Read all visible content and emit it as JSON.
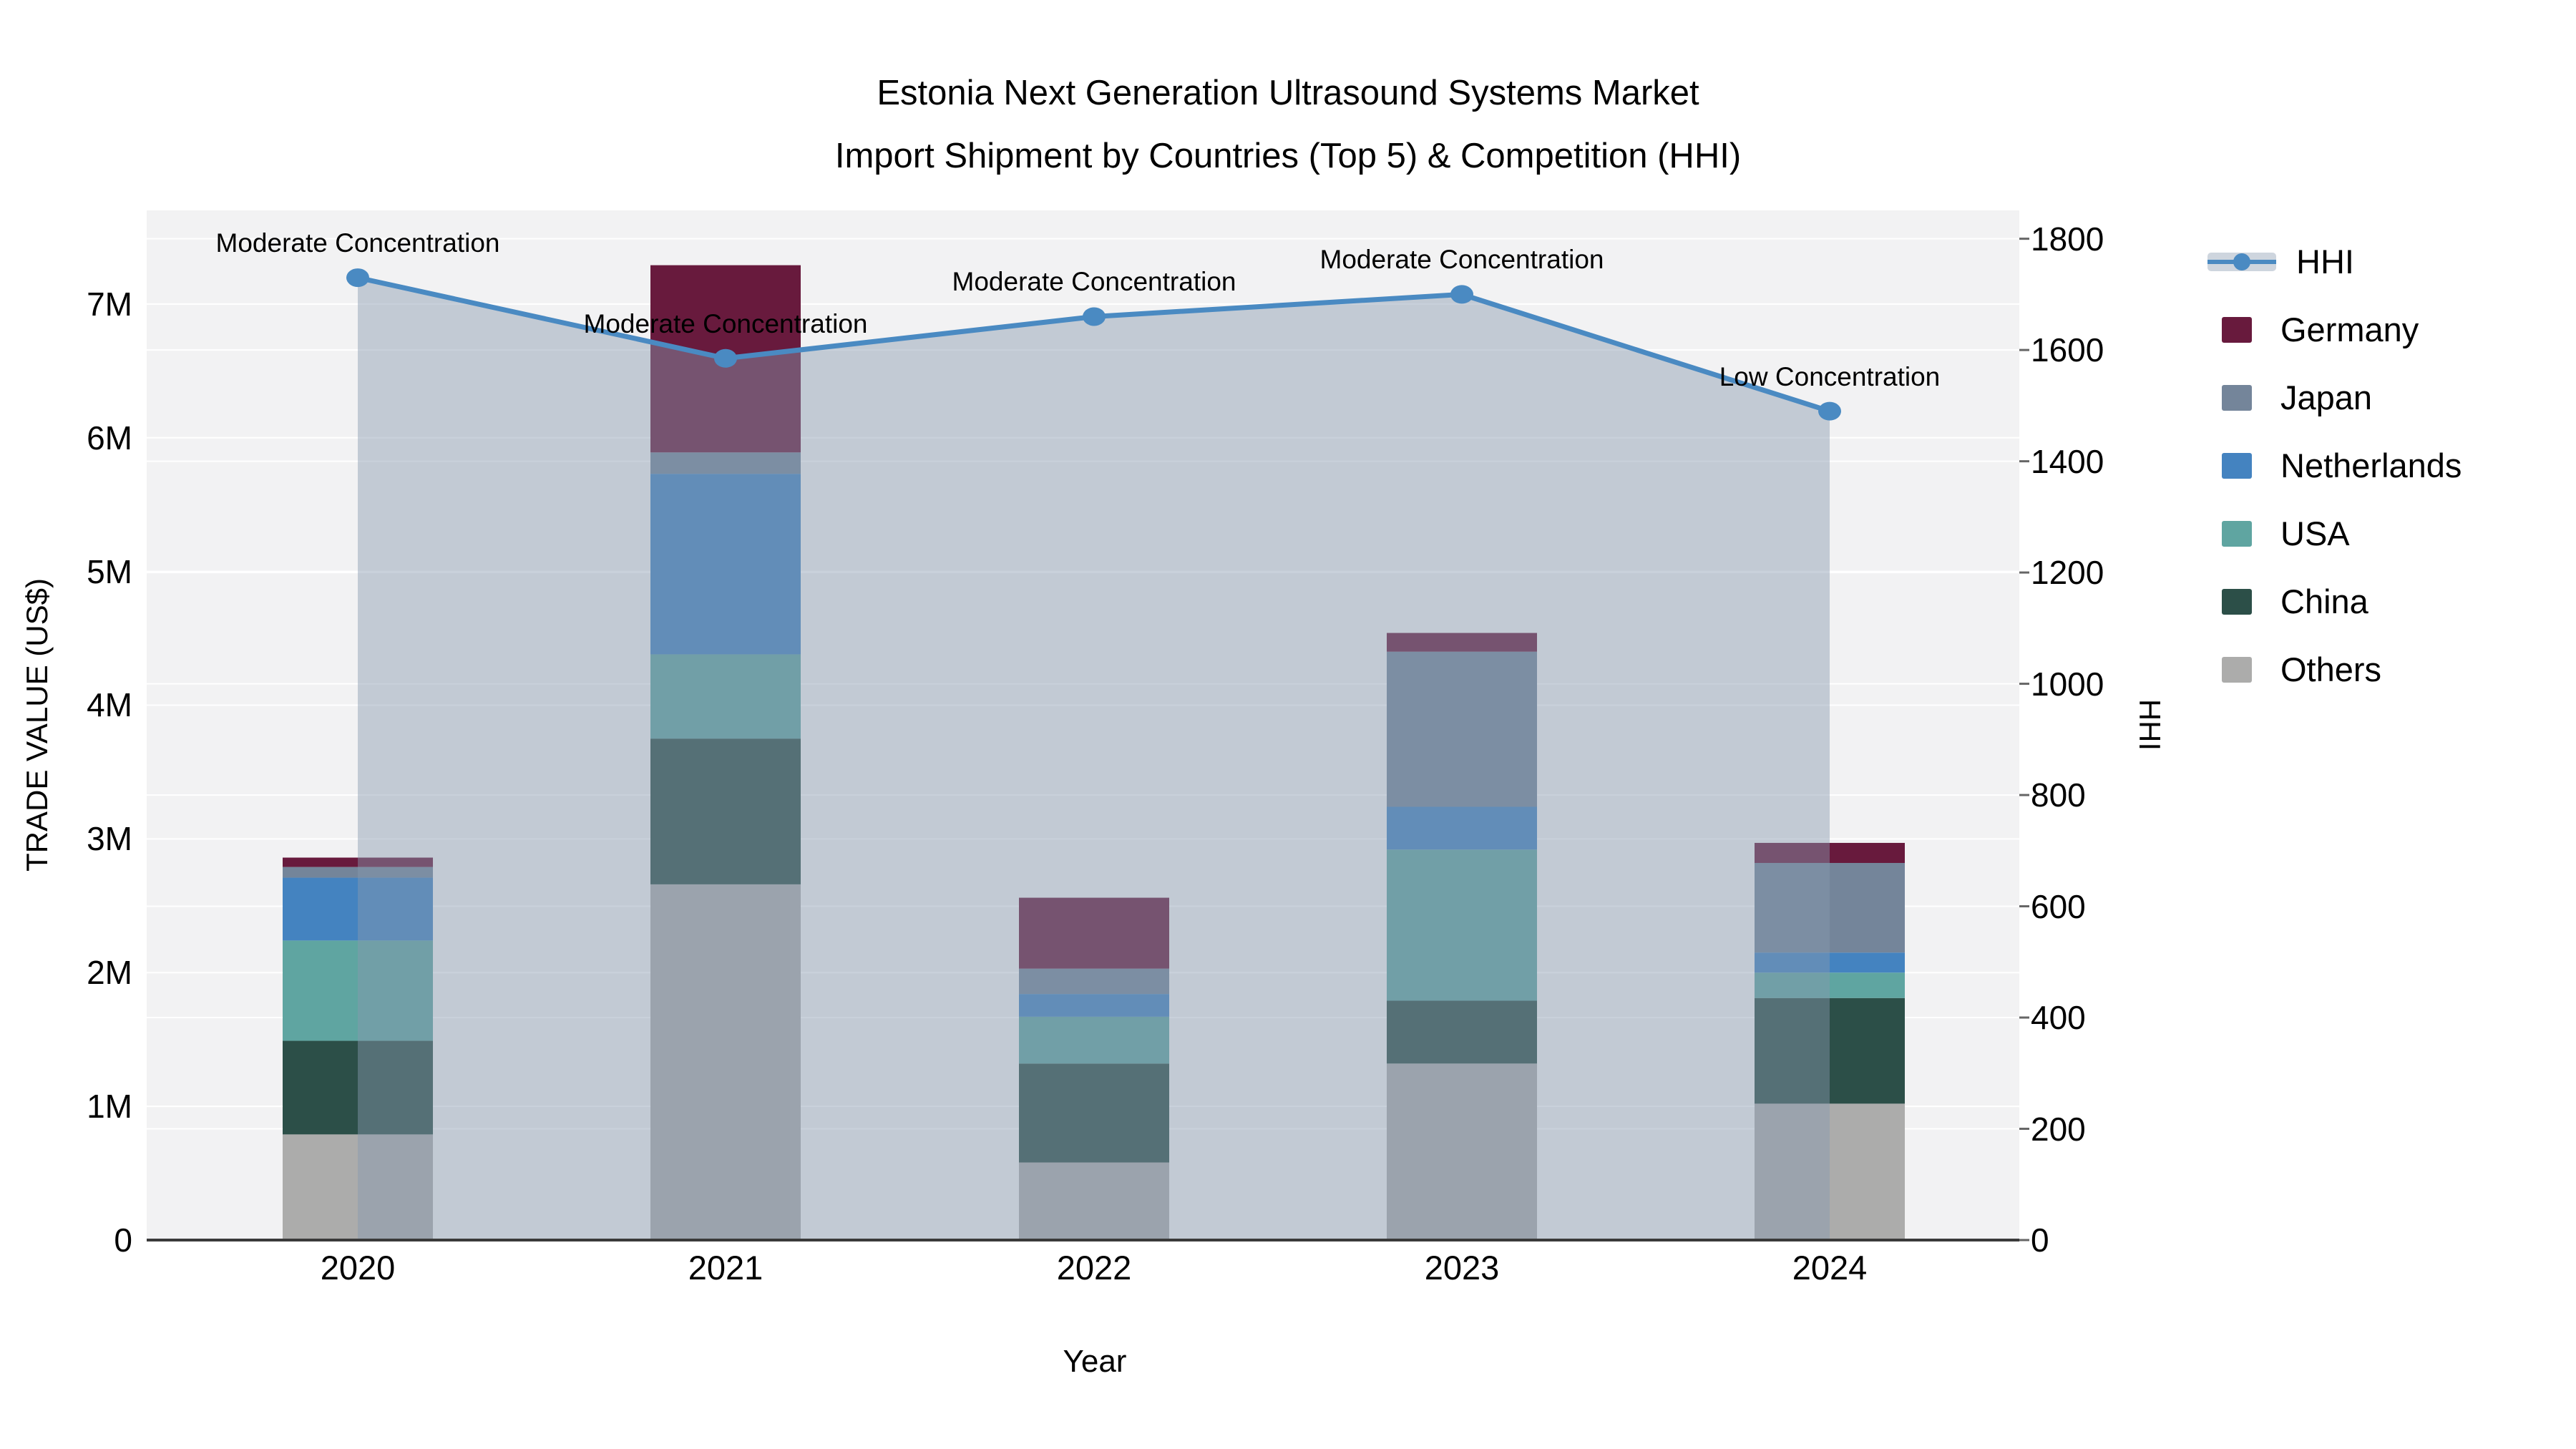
{
  "title": {
    "line1": "Estonia Next Generation Ultrasound Systems Market",
    "line2": "Import Shipment by Countries (Top 5) & Competition (HHI)"
  },
  "chart_data": {
    "type": "stacked-bar+line-dual-axis",
    "title": "Estonia Next Generation Ultrasound Systems Market Import Shipment by Countries (Top 5) & Competition (HHI)",
    "categories": [
      "2020",
      "2021",
      "2022",
      "2023",
      "2024"
    ],
    "bar_unit": "million US$",
    "bar_series": [
      {
        "name": "Others",
        "color": "#ACACAB",
        "values": [
          0.79,
          2.66,
          0.58,
          1.32,
          1.02
        ]
      },
      {
        "name": "China",
        "color": "#2C4F48",
        "values": [
          0.7,
          1.09,
          0.74,
          0.47,
          0.79
        ]
      },
      {
        "name": "USA",
        "color": "#5FA5A1",
        "values": [
          0.75,
          0.63,
          0.35,
          1.13,
          0.19
        ]
      },
      {
        "name": "Netherlands",
        "color": "#4483C0",
        "values": [
          0.47,
          1.35,
          0.17,
          0.32,
          0.15
        ]
      },
      {
        "name": "Japan",
        "color": "#74859A",
        "values": [
          0.08,
          0.16,
          0.19,
          1.16,
          0.67
        ]
      },
      {
        "name": "Germany",
        "color": "#681A3D",
        "values": [
          0.07,
          1.4,
          0.53,
          0.14,
          0.15
        ]
      }
    ],
    "bar_totals": [
      2.86,
      7.29,
      2.56,
      4.54,
      2.97
    ],
    "hhi_series": {
      "name": "HHI",
      "color": "#4A8AC2",
      "fill_color": "rgba(136,152,175,0.45)",
      "values": [
        1730,
        1585,
        1660,
        1700,
        1490
      ],
      "annotations": [
        "Moderate Concentration",
        "Moderate Concentration",
        "Moderate Concentration",
        "Moderate Concentration",
        "Low Concentration"
      ]
    },
    "left_axis": {
      "title": "TRADE VALUE (US$)",
      "tick_labels": [
        "0",
        "1M",
        "2M",
        "3M",
        "4M",
        "5M",
        "6M",
        "7M"
      ],
      "tick_values": [
        0,
        1,
        2,
        3,
        4,
        5,
        6,
        7
      ],
      "min": 0,
      "max": 7.7
    },
    "right_axis": {
      "title": "HHI",
      "tick_labels": [
        "0",
        "200",
        "400",
        "600",
        "800",
        "1000",
        "1200",
        "1400",
        "1600",
        "1800"
      ],
      "tick_values": [
        0,
        200,
        400,
        600,
        800,
        1000,
        1200,
        1400,
        1600,
        1800
      ],
      "min": 0,
      "max": 1851
    },
    "x_axis": {
      "title": "Year"
    },
    "legend_order": [
      "HHI",
      "Germany",
      "Japan",
      "Netherlands",
      "USA",
      "China",
      "Others"
    ],
    "colors": {
      "plot_bg": "#F2F2F3",
      "gridline": "#FFFFFF",
      "axis_line": "#3A3A3A",
      "tick_mark": "#666666"
    }
  }
}
